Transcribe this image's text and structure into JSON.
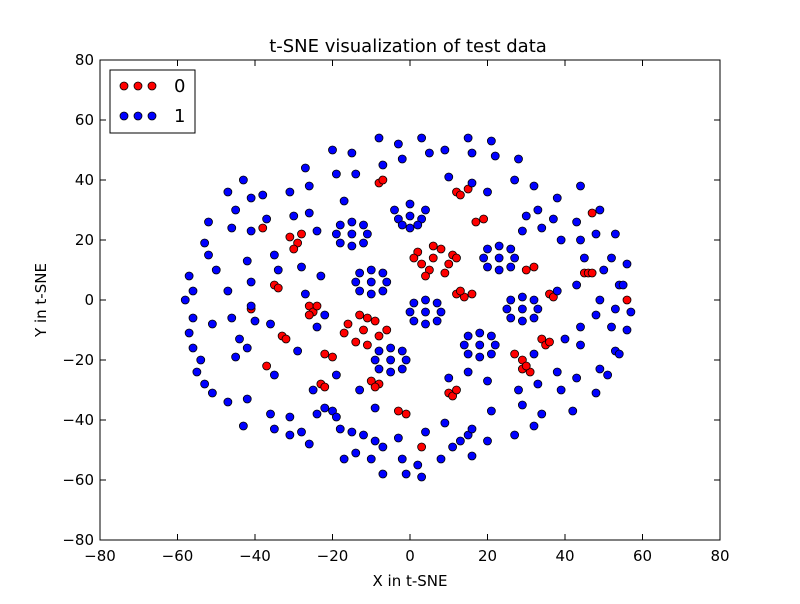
{
  "chart_data": {
    "type": "scatter",
    "title": "t-SNE visualization of test data",
    "xlabel": "X in t-SNE",
    "ylabel": "Y in t-SNE",
    "xlim": [
      -80,
      80
    ],
    "ylim": [
      -80,
      80
    ],
    "xticks": [
      -80,
      -60,
      -40,
      -20,
      0,
      20,
      40,
      60,
      80
    ],
    "yticks": [
      -80,
      -60,
      -40,
      -20,
      0,
      20,
      40,
      60,
      80
    ],
    "grid": false,
    "legend_location": "upper-left",
    "series": [
      {
        "name": "0",
        "color": "#ff0000",
        "points": [
          [
            6,
            14
          ],
          [
            2,
            16
          ],
          [
            10,
            12
          ],
          [
            5,
            10
          ],
          [
            8,
            17
          ],
          [
            3,
            12
          ],
          [
            11,
            15
          ],
          [
            6,
            18
          ],
          [
            1,
            14
          ],
          [
            9,
            9
          ],
          [
            4,
            8
          ],
          [
            12,
            14
          ],
          [
            -12,
            -10
          ],
          [
            -16,
            -8
          ],
          [
            -8,
            -12
          ],
          [
            -11,
            -6
          ],
          [
            -14,
            -14
          ],
          [
            -9,
            -7
          ],
          [
            -17,
            -11
          ],
          [
            -11,
            -15
          ],
          [
            -6,
            -10
          ],
          [
            -13,
            -5
          ],
          [
            -31,
            21
          ],
          [
            -29,
            19
          ],
          [
            -30,
            17
          ],
          [
            -28,
            22
          ],
          [
            -35,
            5
          ],
          [
            -34,
            4
          ],
          [
            -26,
            -2
          ],
          [
            -25,
            -4
          ],
          [
            -26,
            -5
          ],
          [
            -24,
            -2
          ],
          [
            -33,
            -12
          ],
          [
            -32,
            -13
          ],
          [
            -22,
            -18
          ],
          [
            -20,
            -19
          ],
          [
            -23,
            -28
          ],
          [
            -22,
            -29
          ],
          [
            -10,
            -27
          ],
          [
            -8,
            -28
          ],
          [
            -9,
            -29
          ],
          [
            12,
            2
          ],
          [
            14,
            1
          ],
          [
            16,
            2
          ],
          [
            13,
            3
          ],
          [
            12,
            36
          ],
          [
            15,
            37
          ],
          [
            13,
            35
          ],
          [
            17,
            26
          ],
          [
            19,
            27
          ],
          [
            -8,
            39
          ],
          [
            -7,
            40
          ],
          [
            10,
            -31
          ],
          [
            11,
            -32
          ],
          [
            12,
            -30
          ],
          [
            -1,
            -38
          ],
          [
            -3,
            -37
          ],
          [
            3,
            -49
          ],
          [
            27,
            -18
          ],
          [
            29,
            -20
          ],
          [
            29,
            -23
          ],
          [
            31,
            -24
          ],
          [
            30,
            -22
          ],
          [
            32,
            11
          ],
          [
            30,
            10
          ],
          [
            34,
            -13
          ],
          [
            35,
            -15
          ],
          [
            36,
            -14
          ],
          [
            36,
            2
          ],
          [
            37,
            1
          ],
          [
            45,
            9
          ],
          [
            46,
            9
          ],
          [
            47,
            9
          ],
          [
            47,
            29
          ],
          [
            56,
            0
          ],
          [
            -38,
            24
          ],
          [
            -37,
            -22
          ],
          [
            -41,
            -3
          ]
        ]
      },
      {
        "name": "1",
        "color": "#0000ff",
        "points": [
          [
            0,
            28
          ],
          [
            -3,
            27
          ],
          [
            3,
            27
          ],
          [
            0,
            32
          ],
          [
            0,
            24
          ],
          [
            -4,
            30
          ],
          [
            4,
            30
          ],
          [
            2,
            25
          ],
          [
            -2,
            25
          ],
          [
            -15,
            22
          ],
          [
            -19,
            22
          ],
          [
            -11,
            22
          ],
          [
            -15,
            26
          ],
          [
            -15,
            18
          ],
          [
            -18,
            25
          ],
          [
            -12,
            25
          ],
          [
            -18,
            19
          ],
          [
            -12,
            19
          ],
          [
            -10,
            6
          ],
          [
            -14,
            6
          ],
          [
            -6,
            6
          ],
          [
            -10,
            10
          ],
          [
            -10,
            2
          ],
          [
            -13,
            9
          ],
          [
            -7,
            9
          ],
          [
            -13,
            3
          ],
          [
            -7,
            3
          ],
          [
            4,
            -4
          ],
          [
            0,
            -4
          ],
          [
            8,
            -4
          ],
          [
            4,
            0
          ],
          [
            4,
            -8
          ],
          [
            1,
            -1
          ],
          [
            7,
            -1
          ],
          [
            1,
            -7
          ],
          [
            7,
            -7
          ],
          [
            -5,
            -20
          ],
          [
            -9,
            -20
          ],
          [
            -1,
            -20
          ],
          [
            -5,
            -16
          ],
          [
            -5,
            -24
          ],
          [
            -8,
            -17
          ],
          [
            -2,
            -17
          ],
          [
            -8,
            -23
          ],
          [
            -2,
            -23
          ],
          [
            18,
            -15
          ],
          [
            14,
            -15
          ],
          [
            22,
            -15
          ],
          [
            18,
            -11
          ],
          [
            18,
            -19
          ],
          [
            15,
            -12
          ],
          [
            21,
            -12
          ],
          [
            15,
            -18
          ],
          [
            21,
            -18
          ],
          [
            23,
            14
          ],
          [
            19,
            14
          ],
          [
            27,
            14
          ],
          [
            23,
            18
          ],
          [
            23,
            10
          ],
          [
            20,
            17
          ],
          [
            26,
            17
          ],
          [
            20,
            11
          ],
          [
            26,
            11
          ],
          [
            29,
            -3
          ],
          [
            25,
            -3
          ],
          [
            33,
            -3
          ],
          [
            29,
            1
          ],
          [
            29,
            -7
          ],
          [
            26,
            0
          ],
          [
            32,
            0
          ],
          [
            26,
            -6
          ],
          [
            32,
            -6
          ],
          [
            -20,
            -37
          ],
          [
            -22,
            -36
          ],
          [
            -19,
            -39
          ],
          [
            -9,
            -47
          ],
          [
            -12,
            -45
          ],
          [
            -7,
            -49
          ],
          [
            13,
            -47
          ],
          [
            15,
            -45
          ],
          [
            11,
            -49
          ],
          [
            -57,
            8
          ],
          [
            -56,
            3
          ],
          [
            -58,
            0
          ],
          [
            -56,
            -6
          ],
          [
            -57,
            -11
          ],
          [
            -56,
            -16
          ],
          [
            -54,
            -20
          ],
          [
            -55,
            -24
          ],
          [
            -52,
            26
          ],
          [
            -53,
            19
          ],
          [
            -52,
            15
          ],
          [
            -50,
            10
          ],
          [
            -51,
            -8
          ],
          [
            -53,
            -28
          ],
          [
            -51,
            -31
          ],
          [
            -47,
            36
          ],
          [
            -45,
            30
          ],
          [
            -46,
            24
          ],
          [
            -47,
            3
          ],
          [
            -46,
            -6
          ],
          [
            -44,
            -13
          ],
          [
            -45,
            -19
          ],
          [
            -47,
            -34
          ],
          [
            -43,
            40
          ],
          [
            -41,
            34
          ],
          [
            -41,
            23
          ],
          [
            -42,
            13
          ],
          [
            -41,
            6
          ],
          [
            -41,
            -2
          ],
          [
            -40,
            -7
          ],
          [
            -42,
            -16
          ],
          [
            -42,
            -33
          ],
          [
            -43,
            -42
          ],
          [
            -38,
            35
          ],
          [
            -37,
            27
          ],
          [
            -35,
            15
          ],
          [
            -34,
            10
          ],
          [
            -36,
            -8
          ],
          [
            -35,
            -25
          ],
          [
            -36,
            -38
          ],
          [
            -35,
            -43
          ],
          [
            -31,
            36
          ],
          [
            -30,
            28
          ],
          [
            -28,
            11
          ],
          [
            -27,
            2
          ],
          [
            -29,
            -17
          ],
          [
            -31,
            -39
          ],
          [
            -31,
            -45
          ],
          [
            -28,
            -44
          ],
          [
            -27,
            44
          ],
          [
            -26,
            38
          ],
          [
            -26,
            29
          ],
          [
            -24,
            23
          ],
          [
            -23,
            8
          ],
          [
            -24,
            -9
          ],
          [
            -25,
            -30
          ],
          [
            -24,
            -38
          ],
          [
            -26,
            -48
          ],
          [
            -20,
            50
          ],
          [
            -19,
            42
          ],
          [
            -17,
            33
          ],
          [
            -22,
            -5
          ],
          [
            -19,
            -25
          ],
          [
            -18,
            -43
          ],
          [
            -17,
            -53
          ],
          [
            -15,
            49
          ],
          [
            -14,
            42
          ],
          [
            -13,
            -30
          ],
          [
            -15,
            -44
          ],
          [
            -14,
            -51
          ],
          [
            -8,
            54
          ],
          [
            -7,
            45
          ],
          [
            -9,
            -36
          ],
          [
            -10,
            -53
          ],
          [
            -7,
            -58
          ],
          [
            -3,
            52
          ],
          [
            -2,
            47
          ],
          [
            -3,
            -46
          ],
          [
            -2,
            -53
          ],
          [
            -1,
            -58
          ],
          [
            3,
            54
          ],
          [
            5,
            49
          ],
          [
            4,
            -44
          ],
          [
            2,
            -55
          ],
          [
            3,
            -59
          ],
          [
            9,
            50
          ],
          [
            10,
            41
          ],
          [
            10,
            -26
          ],
          [
            9,
            -41
          ],
          [
            8,
            -53
          ],
          [
            15,
            54
          ],
          [
            16,
            49
          ],
          [
            16,
            39
          ],
          [
            15,
            -24
          ],
          [
            16,
            -43
          ],
          [
            16,
            -52
          ],
          [
            21,
            53
          ],
          [
            22,
            48
          ],
          [
            20,
            36
          ],
          [
            20,
            -27
          ],
          [
            21,
            -37
          ],
          [
            20,
            -47
          ],
          [
            28,
            47
          ],
          [
            27,
            40
          ],
          [
            30,
            28
          ],
          [
            29,
            23
          ],
          [
            28,
            -30
          ],
          [
            29,
            -35
          ],
          [
            27,
            -45
          ],
          [
            32,
            38
          ],
          [
            33,
            30
          ],
          [
            34,
            24
          ],
          [
            32,
            -18
          ],
          [
            33,
            -28
          ],
          [
            34,
            -38
          ],
          [
            32,
            -42
          ],
          [
            38,
            34
          ],
          [
            37,
            27
          ],
          [
            39,
            20
          ],
          [
            38,
            3
          ],
          [
            40,
            -13
          ],
          [
            38,
            -24
          ],
          [
            39,
            -30
          ],
          [
            44,
            38
          ],
          [
            43,
            26
          ],
          [
            44,
            20
          ],
          [
            45,
            14
          ],
          [
            43,
            5
          ],
          [
            44,
            -9
          ],
          [
            44,
            -15
          ],
          [
            43,
            -26
          ],
          [
            42,
            -37
          ],
          [
            49,
            30
          ],
          [
            48,
            22
          ],
          [
            50,
            10
          ],
          [
            49,
            0
          ],
          [
            48,
            -5
          ],
          [
            49,
            -23
          ],
          [
            48,
            -31
          ],
          [
            53,
            22
          ],
          [
            52,
            14
          ],
          [
            54,
            5
          ],
          [
            53,
            -3
          ],
          [
            52,
            -9
          ],
          [
            53,
            -17
          ],
          [
            51,
            -25
          ],
          [
            56,
            12
          ],
          [
            55,
            5
          ],
          [
            57,
            -4
          ],
          [
            56,
            -10
          ],
          [
            54,
            -18
          ]
        ]
      }
    ]
  }
}
